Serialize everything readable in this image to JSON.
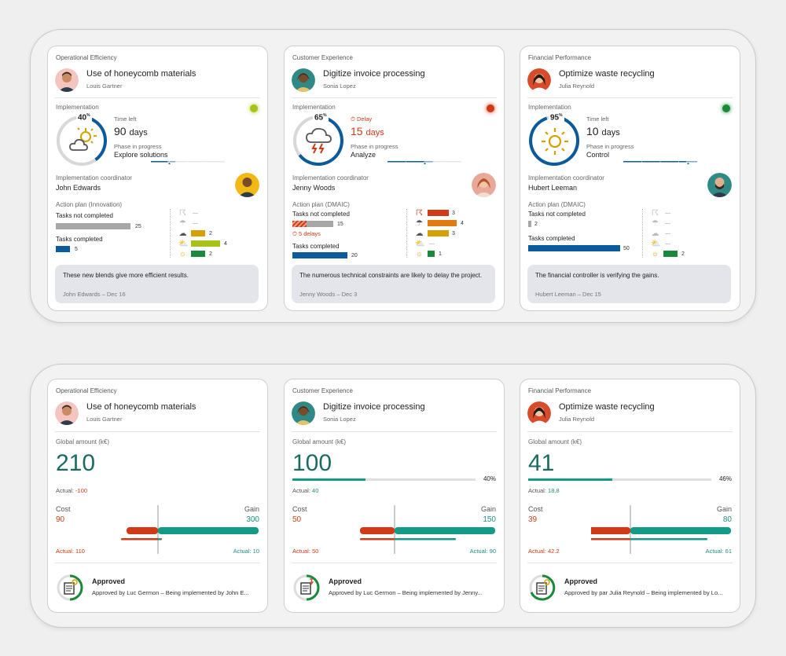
{
  "colors": {
    "blue": "#0a5a9c",
    "green": "#149b88",
    "red": "#d03a17",
    "gray": "#a7a7a7",
    "lime": "#a8c21a",
    "orange": "#e07b14",
    "yellow": "#d6a000",
    "darkgreen": "#1a8a3a"
  },
  "top": [
    {
      "category": "Operational Efficiency",
      "title": "Use of honeycomb materials",
      "owner": "Louis Gartner",
      "impl_label": "Implementation",
      "status_color": "#a8c21a",
      "percent": 40,
      "pct_label": "40",
      "time_label": "Time left",
      "time_value": "90",
      "time_unit": "days",
      "delay_label": "",
      "phase_label": "Phase in progress",
      "phase_value": "Explore solutions",
      "coord_label": "Implementation coordinator",
      "coord_name": "John Edwards",
      "plan_label": "Action plan (Innovation)",
      "tnc_label": "Tasks not completed",
      "tnc_value": "25",
      "delays_label": "",
      "tc_label": "Tasks completed",
      "tc_value": "5",
      "weather": [
        {
          "v": "—"
        },
        {
          "v": "—"
        },
        {
          "v": "2"
        },
        {
          "v": "4"
        },
        {
          "v": "2"
        }
      ],
      "note_text": "These new blends give more efficient results.",
      "note_by": "John Edwards – Dec 16"
    },
    {
      "category": "Customer Experience",
      "title": "Digitize invoice processing",
      "owner": "Sonia Lopez",
      "impl_label": "Implementation",
      "status_color": "#d03a17",
      "percent": 65,
      "pct_label": "65",
      "time_label": "Delay",
      "time_value": "15",
      "time_unit": "days",
      "delay_label": "5 delays",
      "phase_label": "Phase in progress",
      "phase_value": "Analyze",
      "coord_label": "Implementation coordinator",
      "coord_name": "Jenny Woods",
      "plan_label": "Action plan (DMAIC)",
      "tnc_label": "Tasks not completed",
      "tnc_value": "15",
      "tc_label": "Tasks completed",
      "tc_value": "20",
      "weather": [
        {
          "v": "3"
        },
        {
          "v": "4"
        },
        {
          "v": "3"
        },
        {
          "v": "—"
        },
        {
          "v": "1"
        }
      ],
      "note_text": "The numerous technical constraints are likely to delay the project.",
      "note_by": "Jenny Woods – Dec 3"
    },
    {
      "category": "Financial Performance",
      "title": "Optimize waste recycling",
      "owner": "Julia Reynold",
      "impl_label": "Implementation",
      "status_color": "#1a8a3a",
      "percent": 95,
      "pct_label": "95",
      "time_label": "Time left",
      "time_value": "10",
      "time_unit": "days",
      "delay_label": "",
      "phase_label": "Phase in progress",
      "phase_value": "Control",
      "coord_label": "Implementation coordinator",
      "coord_name": "Hubert Leeman",
      "plan_label": "Action plan (DMAIC)",
      "tnc_label": "Tasks not completed",
      "tnc_value": "2",
      "tc_label": "Tasks completed",
      "tc_value": "50",
      "weather": [
        {
          "v": "—"
        },
        {
          "v": "—"
        },
        {
          "v": "—"
        },
        {
          "v": "—"
        },
        {
          "v": "2"
        }
      ],
      "note_text": "The financial controller is verifying the gains.",
      "note_by": "Hubert Leeman – Dec 15"
    }
  ],
  "bottom": [
    {
      "category": "Operational Efficiency",
      "title": "Use of honeycomb materials",
      "owner": "Louis Gartner",
      "amount_label": "Global amount (k€)",
      "amount": "210",
      "progress_pct": "",
      "progress": 0,
      "actual_label": "Actual:",
      "actual_value": "-100",
      "cost_label": "Cost",
      "cost_value": "90",
      "gain_label": "Gain",
      "gain_value": "300",
      "actual_cost": "Actual: 110",
      "actual_gain": "Actual: 10",
      "approved_label": "Approved",
      "approved_text": "Approved by Luc Germon – Being implemented by John E..."
    },
    {
      "category": "Customer Experience",
      "title": "Digitize invoice processing",
      "owner": "Sonia Lopez",
      "amount_label": "Global amount (k€)",
      "amount": "100",
      "progress_pct": "40%",
      "progress": 0.4,
      "actual_label": "Actual:",
      "actual_value": "40",
      "cost_label": "Cost",
      "cost_value": "50",
      "gain_label": "Gain",
      "gain_value": "150",
      "actual_cost": "Actual: 50",
      "actual_gain": "Actual: 90",
      "approved_label": "Approved",
      "approved_text": "Approved by Luc Germon – Being implemented by Jenny..."
    },
    {
      "category": "Financial Performance",
      "title": "Optimize waste recycling",
      "owner": "Julia Reynold",
      "amount_label": "Global amount (k€)",
      "amount": "41",
      "progress_pct": "46%",
      "progress": 0.46,
      "actual_label": "Actual:",
      "actual_value": "18,8",
      "cost_label": "Cost",
      "cost_value": "39",
      "gain_label": "Gain",
      "gain_value": "80",
      "actual_cost": "Actual: 42.2",
      "actual_gain": "Actual: 61",
      "approved_label": "Approved",
      "approved_text": "Approved by par Julia Reynold – Being implemented by Lo..."
    }
  ]
}
